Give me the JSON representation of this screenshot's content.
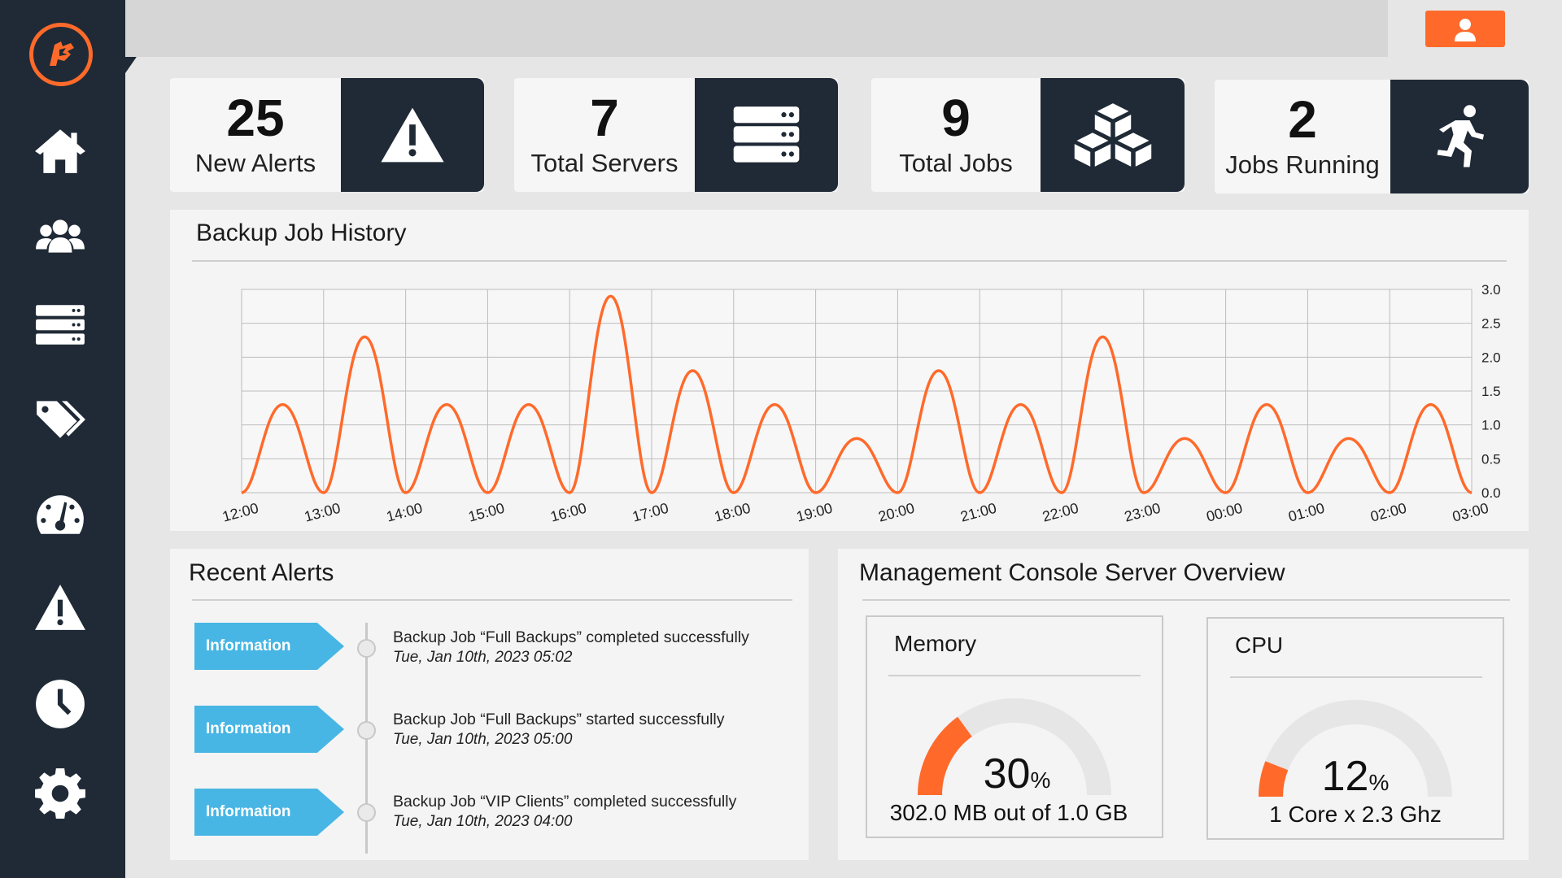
{
  "stats": [
    {
      "value": "25",
      "label": "New Alerts",
      "icon": "warning-icon"
    },
    {
      "value": "7",
      "label": "Total Servers",
      "icon": "server-icon"
    },
    {
      "value": "9",
      "label": "Total Jobs",
      "icon": "boxes-icon"
    },
    {
      "value": "2",
      "label": "Jobs Running",
      "icon": "running-icon"
    }
  ],
  "sidebar": {
    "items": [
      {
        "icon": "home-icon"
      },
      {
        "icon": "users-icon"
      },
      {
        "icon": "server-icon"
      },
      {
        "icon": "tags-icon"
      },
      {
        "icon": "gauge-icon"
      },
      {
        "icon": "warning-icon"
      },
      {
        "icon": "clock-icon"
      },
      {
        "icon": "gear-icon"
      }
    ]
  },
  "colors": {
    "accent": "#ff6a2b",
    "sidebar": "#1f2a36",
    "badge": "#47b6e4",
    "gauge_track": "#e6e6e6"
  },
  "history": {
    "title": "Backup Job History",
    "chart_data": {
      "type": "line",
      "x": [
        "12:00",
        "13:00",
        "14:00",
        "15:00",
        "16:00",
        "17:00",
        "18:00",
        "19:00",
        "20:00",
        "21:00",
        "22:00",
        "23:00",
        "00:00",
        "01:00",
        "02:00",
        "03:00"
      ],
      "peaks": [
        1.3,
        2.3,
        1.3,
        1.3,
        2.9,
        1.8,
        1.3,
        0.8,
        1.8,
        1.3,
        2.3,
        0.8,
        1.3,
        0.8,
        1.3
      ],
      "ylim": [
        0,
        3.0
      ],
      "yticks": [
        "0.0",
        "0.5",
        "1.0",
        "1.5",
        "2.0",
        "2.5",
        "3.0"
      ],
      "grid": true,
      "yaxis_side": "right",
      "line_color": "#ff6a2b"
    }
  },
  "alerts": {
    "title": "Recent Alerts",
    "items": [
      {
        "badge": "Information",
        "message": "Backup Job “Full Backups” completed successfully",
        "time": "Tue, Jan 10th, 2023 05:02"
      },
      {
        "badge": "Information",
        "message": "Backup Job “Full Backups” started successfully",
        "time": "Tue, Jan 10th, 2023 05:00"
      },
      {
        "badge": "Information",
        "message": "Backup Job “VIP Clients” completed successfully",
        "time": "Tue, Jan 10th, 2023 04:00"
      }
    ]
  },
  "overview": {
    "title": "Management Console Server Overview",
    "memory": {
      "title": "Memory",
      "value": "30",
      "unit": "%",
      "fraction": 0.3,
      "detail": "302.0 MB out of 1.0 GB"
    },
    "cpu": {
      "title": "CPU",
      "value": "12",
      "unit": "%",
      "fraction": 0.12,
      "detail": "1 Core x 2.3 Ghz"
    }
  }
}
